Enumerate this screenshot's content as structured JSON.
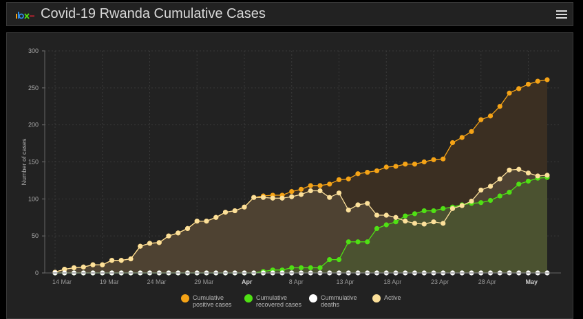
{
  "header": {
    "title": "Covid-19 Rwanda Cumulative Cases",
    "logo_text": "rbc",
    "menu_icon": "hamburger-menu-icon"
  },
  "colors": {
    "positive": "#f5a316",
    "recovered": "#4fe014",
    "deaths": "#ffffff",
    "active": "#fce09a",
    "positive_fill": "#3b2f22",
    "active_fill": "#4e4232",
    "recovered_fill": "#4b5230"
  },
  "chart_data": {
    "type": "line",
    "title": "Covid-19 Rwanda Cumulative Cases",
    "xlabel": "",
    "ylabel": "Number of cases",
    "ylim": [
      0,
      300
    ],
    "yticks": [
      0,
      50,
      100,
      150,
      200,
      250,
      300
    ],
    "xtick_labels": [
      "14 Mar",
      "19 Mar",
      "24 Mar",
      "29 Mar",
      "Apr",
      "8 Apr",
      "13 Apr",
      "18 Apr",
      "23 Apr",
      "28 Apr",
      "May"
    ],
    "xtick_index": [
      0,
      5,
      10,
      15,
      20,
      25,
      30,
      35,
      40,
      45,
      50
    ],
    "start_date": "14 Mar",
    "grid": true,
    "legend_position": "bottom-center",
    "series": [
      {
        "key": "positive",
        "name": "Cumulative positive cases",
        "values": [
          1,
          5,
          7,
          8,
          11,
          11,
          17,
          17,
          19,
          36,
          40,
          41,
          50,
          54,
          60,
          70,
          70,
          75,
          82,
          84,
          89,
          102,
          104,
          105,
          105,
          110,
          113,
          118,
          118,
          120,
          126,
          127,
          134,
          136,
          138,
          143,
          144,
          147,
          147,
          150,
          153,
          154,
          176,
          183,
          191,
          207,
          212,
          225,
          243,
          249,
          255,
          259,
          261
        ]
      },
      {
        "key": "recovered",
        "name": "Cumulative recovered cases",
        "values": [
          0,
          0,
          0,
          0,
          0,
          0,
          0,
          0,
          0,
          0,
          0,
          0,
          0,
          0,
          0,
          0,
          0,
          0,
          0,
          0,
          0,
          0,
          2,
          4,
          4,
          7,
          7,
          7,
          7,
          18,
          18,
          42,
          42,
          42,
          60,
          65,
          69,
          77,
          80,
          84,
          84,
          87,
          89,
          92,
          94,
          95,
          98,
          104,
          109,
          120,
          124,
          128,
          129
        ]
      },
      {
        "key": "deaths",
        "name": "Cummulative deaths",
        "values": [
          0,
          0,
          0,
          0,
          0,
          0,
          0,
          0,
          0,
          0,
          0,
          0,
          0,
          0,
          0,
          0,
          0,
          0,
          0,
          0,
          0,
          0,
          0,
          0,
          0,
          0,
          0,
          0,
          0,
          0,
          0,
          0,
          0,
          0,
          0,
          0,
          0,
          0,
          0,
          0,
          0,
          0,
          0,
          0,
          0,
          0,
          0,
          0,
          0,
          0,
          0,
          0,
          0
        ]
      },
      {
        "key": "active",
        "name": "Active",
        "values": [
          1,
          5,
          7,
          8,
          11,
          11,
          17,
          17,
          19,
          36,
          40,
          41,
          50,
          54,
          60,
          70,
          70,
          75,
          82,
          84,
          89,
          102,
          102,
          101,
          101,
          103,
          106,
          111,
          111,
          102,
          108,
          85,
          92,
          94,
          78,
          78,
          75,
          70,
          67,
          66,
          69,
          67,
          87,
          91,
          97,
          112,
          117,
          127,
          139,
          140,
          135,
          131,
          132
        ]
      }
    ]
  },
  "legend": [
    {
      "key": "positive",
      "label_line1": "Cumulative",
      "label_line2": "positive cases"
    },
    {
      "key": "recovered",
      "label_line1": "Cumulative",
      "label_line2": "recovered cases"
    },
    {
      "key": "deaths",
      "label_line1": "Cummulative",
      "label_line2": "deaths"
    },
    {
      "key": "active",
      "label_line1": "Active",
      "label_line2": ""
    }
  ]
}
